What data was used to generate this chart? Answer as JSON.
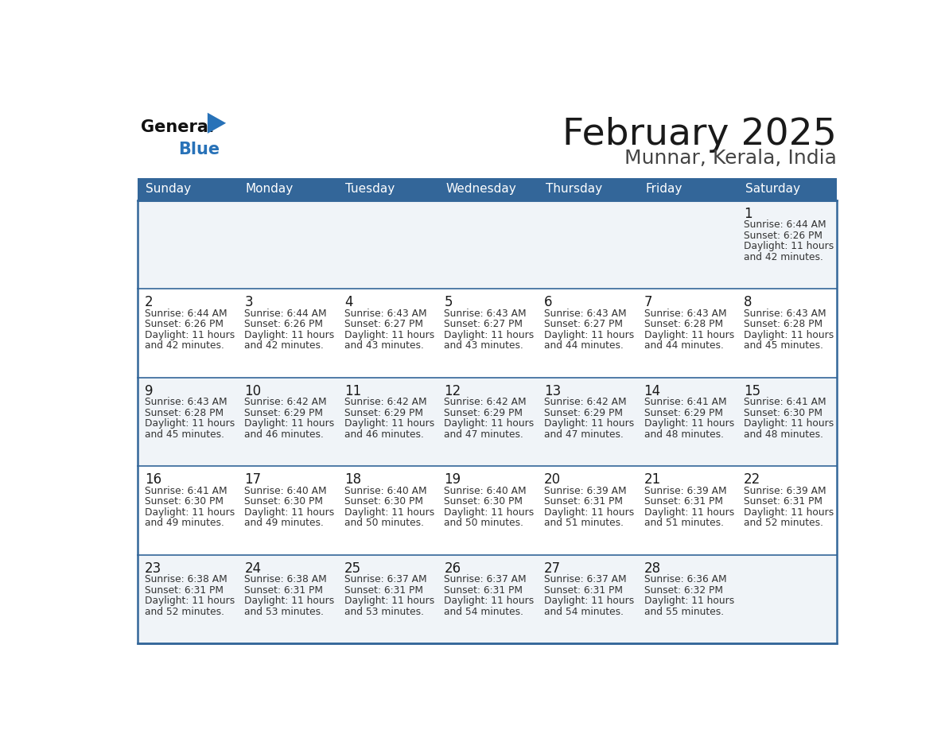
{
  "title": "February 2025",
  "subtitle": "Munnar, Kerala, India",
  "header_bg": "#336699",
  "header_text_color": "#ffffff",
  "border_color": "#336699",
  "row_bg_odd": "#f0f4f8",
  "row_bg_even": "#ffffff",
  "day_names": [
    "Sunday",
    "Monday",
    "Tuesday",
    "Wednesday",
    "Thursday",
    "Friday",
    "Saturday"
  ],
  "title_color": "#1a1a1a",
  "subtitle_color": "#444444",
  "day_number_color": "#1a1a1a",
  "cell_text_color": "#333333",
  "logo_general_color": "#111111",
  "logo_blue_color": "#2872b8",
  "calendar": [
    [
      null,
      null,
      null,
      null,
      null,
      null,
      {
        "day": "1",
        "sunrise": "6:44 AM",
        "sunset": "6:26 PM",
        "dl_min": "42"
      }
    ],
    [
      {
        "day": "2",
        "sunrise": "6:44 AM",
        "sunset": "6:26 PM",
        "dl_min": "42"
      },
      {
        "day": "3",
        "sunrise": "6:44 AM",
        "sunset": "6:26 PM",
        "dl_min": "42"
      },
      {
        "day": "4",
        "sunrise": "6:43 AM",
        "sunset": "6:27 PM",
        "dl_min": "43"
      },
      {
        "day": "5",
        "sunrise": "6:43 AM",
        "sunset": "6:27 PM",
        "dl_min": "43"
      },
      {
        "day": "6",
        "sunrise": "6:43 AM",
        "sunset": "6:27 PM",
        "dl_min": "44"
      },
      {
        "day": "7",
        "sunrise": "6:43 AM",
        "sunset": "6:28 PM",
        "dl_min": "44"
      },
      {
        "day": "8",
        "sunrise": "6:43 AM",
        "sunset": "6:28 PM",
        "dl_min": "45"
      }
    ],
    [
      {
        "day": "9",
        "sunrise": "6:43 AM",
        "sunset": "6:28 PM",
        "dl_min": "45"
      },
      {
        "day": "10",
        "sunrise": "6:42 AM",
        "sunset": "6:29 PM",
        "dl_min": "46"
      },
      {
        "day": "11",
        "sunrise": "6:42 AM",
        "sunset": "6:29 PM",
        "dl_min": "46"
      },
      {
        "day": "12",
        "sunrise": "6:42 AM",
        "sunset": "6:29 PM",
        "dl_min": "47"
      },
      {
        "day": "13",
        "sunrise": "6:42 AM",
        "sunset": "6:29 PM",
        "dl_min": "47"
      },
      {
        "day": "14",
        "sunrise": "6:41 AM",
        "sunset": "6:29 PM",
        "dl_min": "48"
      },
      {
        "day": "15",
        "sunrise": "6:41 AM",
        "sunset": "6:30 PM",
        "dl_min": "48"
      }
    ],
    [
      {
        "day": "16",
        "sunrise": "6:41 AM",
        "sunset": "6:30 PM",
        "dl_min": "49"
      },
      {
        "day": "17",
        "sunrise": "6:40 AM",
        "sunset": "6:30 PM",
        "dl_min": "49"
      },
      {
        "day": "18",
        "sunrise": "6:40 AM",
        "sunset": "6:30 PM",
        "dl_min": "50"
      },
      {
        "day": "19",
        "sunrise": "6:40 AM",
        "sunset": "6:30 PM",
        "dl_min": "50"
      },
      {
        "day": "20",
        "sunrise": "6:39 AM",
        "sunset": "6:31 PM",
        "dl_min": "51"
      },
      {
        "day": "21",
        "sunrise": "6:39 AM",
        "sunset": "6:31 PM",
        "dl_min": "51"
      },
      {
        "day": "22",
        "sunrise": "6:39 AM",
        "sunset": "6:31 PM",
        "dl_min": "52"
      }
    ],
    [
      {
        "day": "23",
        "sunrise": "6:38 AM",
        "sunset": "6:31 PM",
        "dl_min": "52"
      },
      {
        "day": "24",
        "sunrise": "6:38 AM",
        "sunset": "6:31 PM",
        "dl_min": "53"
      },
      {
        "day": "25",
        "sunrise": "6:37 AM",
        "sunset": "6:31 PM",
        "dl_min": "53"
      },
      {
        "day": "26",
        "sunrise": "6:37 AM",
        "sunset": "6:31 PM",
        "dl_min": "54"
      },
      {
        "day": "27",
        "sunrise": "6:37 AM",
        "sunset": "6:31 PM",
        "dl_min": "54"
      },
      {
        "day": "28",
        "sunrise": "6:36 AM",
        "sunset": "6:32 PM",
        "dl_min": "55"
      },
      null
    ]
  ]
}
